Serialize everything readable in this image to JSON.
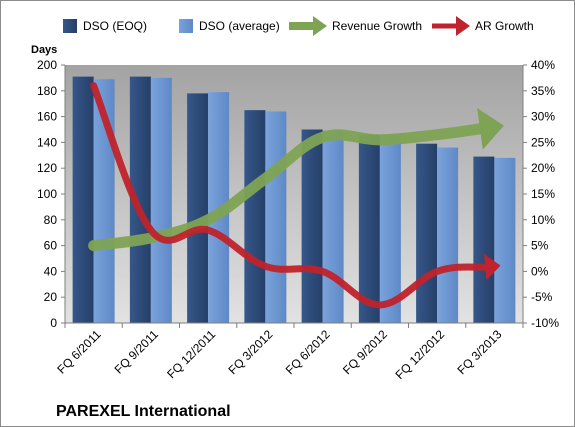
{
  "chart_data": {
    "type": "bar",
    "title": "",
    "subtitle": "PAREXEL International",
    "ylabel": "Days",
    "ylim": [
      0,
      200
    ],
    "y_ticks": [
      0,
      20,
      40,
      60,
      80,
      100,
      120,
      140,
      160,
      180,
      200
    ],
    "y2lim": [
      -10,
      40
    ],
    "y2_ticks": [
      "-10%",
      "-5%",
      "0%",
      "5%",
      "10%",
      "15%",
      "20%",
      "25%",
      "30%",
      "35%",
      "40%"
    ],
    "y2_tick_values": [
      -10,
      -5,
      0,
      5,
      10,
      15,
      20,
      25,
      30,
      35,
      40
    ],
    "categories": [
      "FQ 6/2011",
      "FQ 9/2011",
      "FQ 12/2011",
      "FQ 3/2012",
      "FQ 6/2012",
      "FQ 9/2012",
      "FQ 12/2012",
      "FQ 3/2013"
    ],
    "series": [
      {
        "name": "DSO (EOQ)",
        "type": "bar",
        "axis": "left",
        "color": "#2d4d7d",
        "values": [
          191,
          191,
          178,
          165,
          150,
          146,
          139,
          129
        ]
      },
      {
        "name": "DSO (average)",
        "type": "bar",
        "axis": "left",
        "color": "#6c97d4",
        "values": [
          189,
          190,
          179,
          164,
          149,
          146,
          136,
          128
        ]
      },
      {
        "name": "Revenue Growth",
        "type": "line",
        "axis": "right",
        "color": "#7ea354",
        "values": [
          5,
          6.5,
          10,
          18,
          26,
          25.5,
          26.5,
          28
        ]
      },
      {
        "name": "AR Growth",
        "type": "line",
        "axis": "right",
        "color": "#c0232b",
        "values": [
          36,
          8,
          8,
          1,
          0,
          -6.5,
          0,
          1
        ]
      }
    ],
    "grid": false,
    "legend": "top"
  }
}
